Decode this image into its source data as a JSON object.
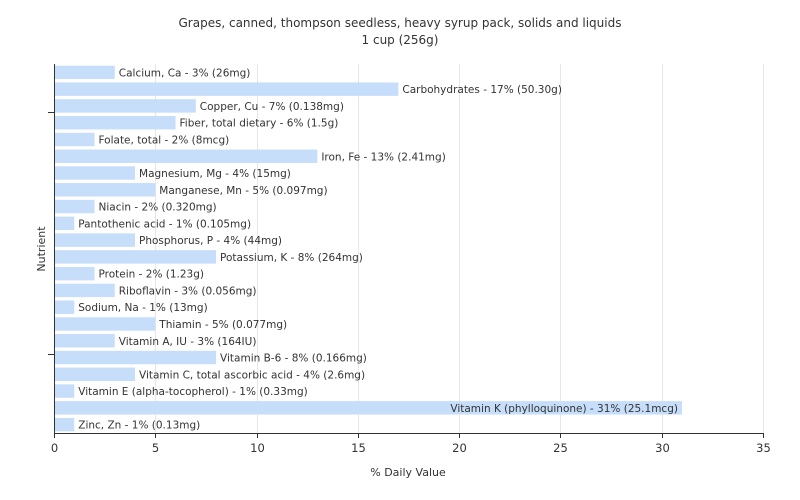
{
  "chart_data": {
    "type": "bar",
    "orientation": "horizontal",
    "title": "Grapes, canned, thompson seedless, heavy syrup pack, solids and liquids",
    "subtitle": "1 cup (256g)",
    "xlabel": "% Daily Value",
    "ylabel": "Nutrient",
    "xlim": [
      0,
      35
    ],
    "xticks": [
      0,
      5,
      10,
      15,
      20,
      25,
      30,
      35
    ],
    "grid": true,
    "legend": "none",
    "bar_color": "#c6defa",
    "categories": [
      "Calcium, Ca",
      "Carbohydrates",
      "Copper, Cu",
      "Fiber, total dietary",
      "Folate, total",
      "Iron, Fe",
      "Magnesium, Mg",
      "Manganese, Mn",
      "Niacin",
      "Pantothenic acid",
      "Phosphorus, P",
      "Potassium, K",
      "Protein",
      "Riboflavin",
      "Sodium, Na",
      "Thiamin",
      "Vitamin A, IU",
      "Vitamin B-6",
      "Vitamin C, total ascorbic acid",
      "Vitamin E (alpha-tocopherol)",
      "Vitamin K (phylloquinone)",
      "Zinc, Zn"
    ],
    "values": [
      3,
      17,
      7,
      6,
      2,
      13,
      4,
      5,
      2,
      1,
      4,
      8,
      2,
      3,
      1,
      5,
      3,
      8,
      4,
      1,
      31,
      1
    ],
    "labels": [
      "Calcium, Ca - 3% (26mg)",
      "Carbohydrates - 17% (50.30g)",
      "Copper, Cu - 7% (0.138mg)",
      "Fiber, total dietary - 6% (1.5g)",
      "Folate, total - 2% (8mcg)",
      "Iron, Fe - 13% (2.41mg)",
      "Magnesium, Mg - 4% (15mg)",
      "Manganese, Mn - 5% (0.097mg)",
      "Niacin - 2% (0.320mg)",
      "Pantothenic acid - 1% (0.105mg)",
      "Phosphorus, P - 4% (44mg)",
      "Potassium, K - 8% (264mg)",
      "Protein - 2% (1.23g)",
      "Riboflavin - 3% (0.056mg)",
      "Sodium, Na - 1% (13mg)",
      "Thiamin - 5% (0.077mg)",
      "Vitamin A, IU - 3% (164IU)",
      "Vitamin B-6 - 8% (0.166mg)",
      "Vitamin C, total ascorbic acid - 4% (2.6mg)",
      "Vitamin E (alpha-tocopherol) - 1% (0.33mg)",
      "Vitamin K (phylloquinone) - 31% (25.1mcg)",
      "Zinc, Zn - 1% (0.13mg)"
    ]
  }
}
